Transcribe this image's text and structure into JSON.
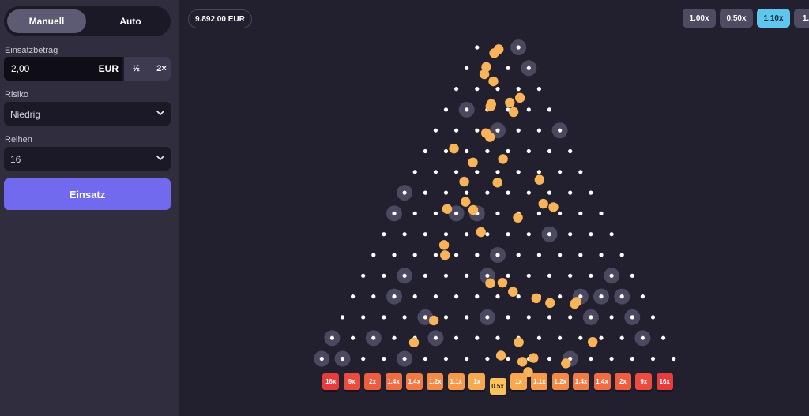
{
  "sidebar": {
    "mode_manual": "Manuell",
    "mode_auto": "Auto",
    "bet_label": "Einsatzbetrag",
    "bet_value": "2,00",
    "bet_currency": "EUR",
    "half_label": "½",
    "double_label": "2×",
    "risk_label": "Risiko",
    "risk_value": "Niedrig",
    "rows_label": "Reihen",
    "rows_value": "16",
    "play_label": "Einsatz"
  },
  "balance": "9.892,00 EUR",
  "speeds": [
    {
      "label": "1.00x",
      "active": false
    },
    {
      "label": "0.50x",
      "active": false
    },
    {
      "label": "1.10x",
      "active": true
    },
    {
      "label": "1.",
      "active": false
    }
  ],
  "board": {
    "rows": 16,
    "multipliers": [
      "16x",
      "9x",
      "2x",
      "1.4x",
      "1.4x",
      "1.2x",
      "1.1x",
      "1x",
      "0.5x",
      "1x",
      "1.1x",
      "1.2x",
      "1.4x",
      "1.4x",
      "2x",
      "9x",
      "16x"
    ],
    "slot_colors": [
      "#e83b3b",
      "#ec4c3d",
      "#ee5d3f",
      "#f06c42",
      "#f27a45",
      "#f48a48",
      "#f6994b",
      "#f8a94f",
      "#fbc15a",
      "#f8a94f",
      "#f6994b",
      "#f48a48",
      "#f27a45",
      "#f06c42",
      "#ee5d3f",
      "#ec4c3d",
      "#e83b3b"
    ],
    "ball_count": 43,
    "ball_color": "#f9b45a",
    "peg_color": "#ffffff"
  },
  "icons": {
    "chevron": "chevron-down-icon"
  }
}
